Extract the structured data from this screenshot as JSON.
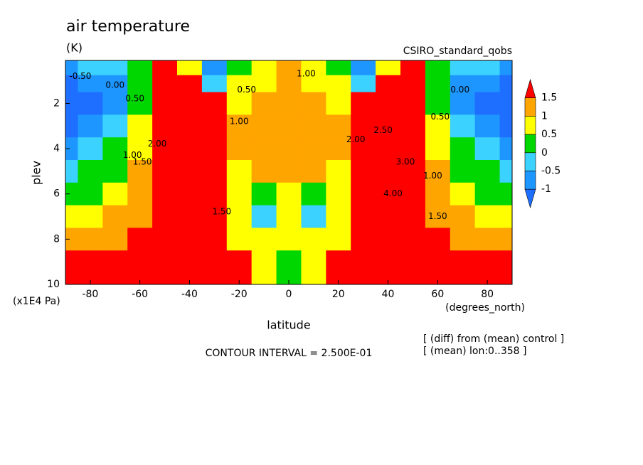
{
  "chart_data": {
    "type": "contour",
    "title": "air temperature",
    "units": "(K)",
    "subtitle": "CSIRO_standard_qobs",
    "x_label": "latitude",
    "x_units": "(degrees_north)",
    "y_label": "plev",
    "y_units": "(x1E4 Pa)",
    "footer": "CONTOUR INTERVAL = 2.500E-01",
    "notes": [
      "[ (diff) from (mean) control ]",
      "[ (mean) lon:0..358 ]"
    ],
    "xlim": [
      -90,
      90
    ],
    "xticks": [
      -80,
      -60,
      -40,
      -20,
      0,
      20,
      40,
      60,
      80
    ],
    "ylim": [
      10,
      0.1
    ],
    "yticks": [
      2,
      4,
      6,
      8,
      10
    ],
    "x": [
      -90,
      -80,
      -70,
      -60,
      -50,
      -40,
      -30,
      -20,
      -10,
      0,
      10,
      20,
      30,
      40,
      50,
      60,
      70,
      80,
      90
    ],
    "y": [
      0.5,
      1,
      2,
      3,
      4,
      5,
      6,
      7,
      8,
      9,
      10
    ],
    "values": [
      [
        -0.6,
        -0.5,
        -0.2,
        0.2,
        1.6,
        0.5,
        -0.8,
        0.2,
        0.7,
        1.1,
        0.7,
        0.2,
        -0.8,
        0.5,
        1.6,
        0.2,
        -0.2,
        -0.5,
        -0.6
      ],
      [
        -1.2,
        -1.0,
        -0.6,
        0.3,
        1.8,
        1.6,
        -0.3,
        0.5,
        0.8,
        1.0,
        0.8,
        0.5,
        -0.3,
        1.6,
        1.8,
        0.3,
        -0.6,
        -1.0,
        -1.2
      ],
      [
        -1.5,
        -1.3,
        -0.7,
        0.4,
        2,
        2.5,
        1.6,
        0.8,
        1.0,
        1.1,
        1.0,
        0.8,
        1.6,
        2.5,
        2,
        0.4,
        -0.7,
        -1.3,
        -1.5
      ],
      [
        -1.3,
        -1.0,
        -0.4,
        0.6,
        2,
        3,
        2,
        1.0,
        1.1,
        1.2,
        1.1,
        1.0,
        2,
        3,
        2,
        0.6,
        -0.4,
        -1.0,
        -1.3
      ],
      [
        -0.7,
        -0.5,
        0,
        0.8,
        2,
        3.5,
        2.2,
        1.1,
        1.2,
        1.2,
        1.2,
        1.1,
        2.2,
        3.5,
        2,
        0.8,
        0,
        -0.5,
        -0.7
      ],
      [
        -0.2,
        0,
        0.4,
        1.0,
        2,
        4,
        2.2,
        0.9,
        1.0,
        1.0,
        1.0,
        0.9,
        2.2,
        4,
        2,
        1.0,
        0.4,
        0,
        -0.2
      ],
      [
        0.2,
        0.4,
        0.7,
        1.2,
        2,
        4,
        2,
        0.7,
        0.4,
        0.8,
        0.4,
        0.7,
        2,
        4,
        2,
        1.2,
        0.7,
        0.4,
        0.2
      ],
      [
        0.7,
        0.8,
        1.0,
        1.4,
        2,
        3.5,
        1.8,
        0.6,
        -0.2,
        0.6,
        -0.2,
        0.6,
        1.8,
        3.5,
        2,
        1.4,
        1.0,
        0.8,
        0.7
      ],
      [
        1.4,
        1.3,
        1.3,
        1.6,
        2,
        3,
        1.7,
        0.8,
        0.7,
        0.6,
        0.7,
        0.8,
        1.7,
        3,
        2,
        1.6,
        1.3,
        1.3,
        1.4
      ],
      [
        2,
        1.8,
        1.7,
        1.8,
        2,
        2.5,
        1.8,
        1.6,
        0.8,
        0.4,
        0.8,
        1.6,
        1.8,
        2.5,
        2,
        1.8,
        1.7,
        1.8,
        2
      ],
      [
        2.5,
        2,
        1.8,
        1.8,
        2,
        2.2,
        2,
        1.8,
        0.9,
        0.3,
        0.9,
        1.8,
        2,
        2.2,
        2,
        1.8,
        1.8,
        2,
        2.5
      ]
    ],
    "levels": [
      -1,
      -0.5,
      0,
      0.5,
      1,
      1.5
    ],
    "colors": [
      "#1e6eff",
      "#1e96ff",
      "#3cd2ff",
      "#00d700",
      "#ffff00",
      "#ffa500",
      "#ff0000"
    ],
    "contour_labels": [
      {
        "label": "-0.50",
        "lat": -84,
        "plev": 0.8
      },
      {
        "label": "0.00",
        "lat": -70,
        "plev": 1.2
      },
      {
        "label": "0.50",
        "lat": -62,
        "plev": 1.8
      },
      {
        "label": "1.00",
        "lat": -63,
        "plev": 4.3
      },
      {
        "label": "1.50",
        "lat": -59,
        "plev": 4.6
      },
      {
        "label": "2.00",
        "lat": -53,
        "plev": 3.8
      },
      {
        "label": "0.50",
        "lat": -17,
        "plev": 1.4
      },
      {
        "label": "1.00",
        "lat": -20,
        "plev": 2.8
      },
      {
        "label": "1.00",
        "lat": 7,
        "plev": 0.7
      },
      {
        "label": "1.50",
        "lat": -27,
        "plev": 6.8
      },
      {
        "label": "2.00",
        "lat": 27,
        "plev": 3.6
      },
      {
        "label": "2.50",
        "lat": 38,
        "plev": 3.2
      },
      {
        "label": "3.00",
        "lat": 47,
        "plev": 4.6
      },
      {
        "label": "4.00",
        "lat": 42,
        "plev": 6
      },
      {
        "label": "0.50",
        "lat": 61,
        "plev": 2.6
      },
      {
        "label": "0.00",
        "lat": 69,
        "plev": 1.4
      },
      {
        "label": "1.00",
        "lat": 58,
        "plev": 5.2
      },
      {
        "label": "1.50",
        "lat": 60,
        "plev": 7
      }
    ]
  }
}
